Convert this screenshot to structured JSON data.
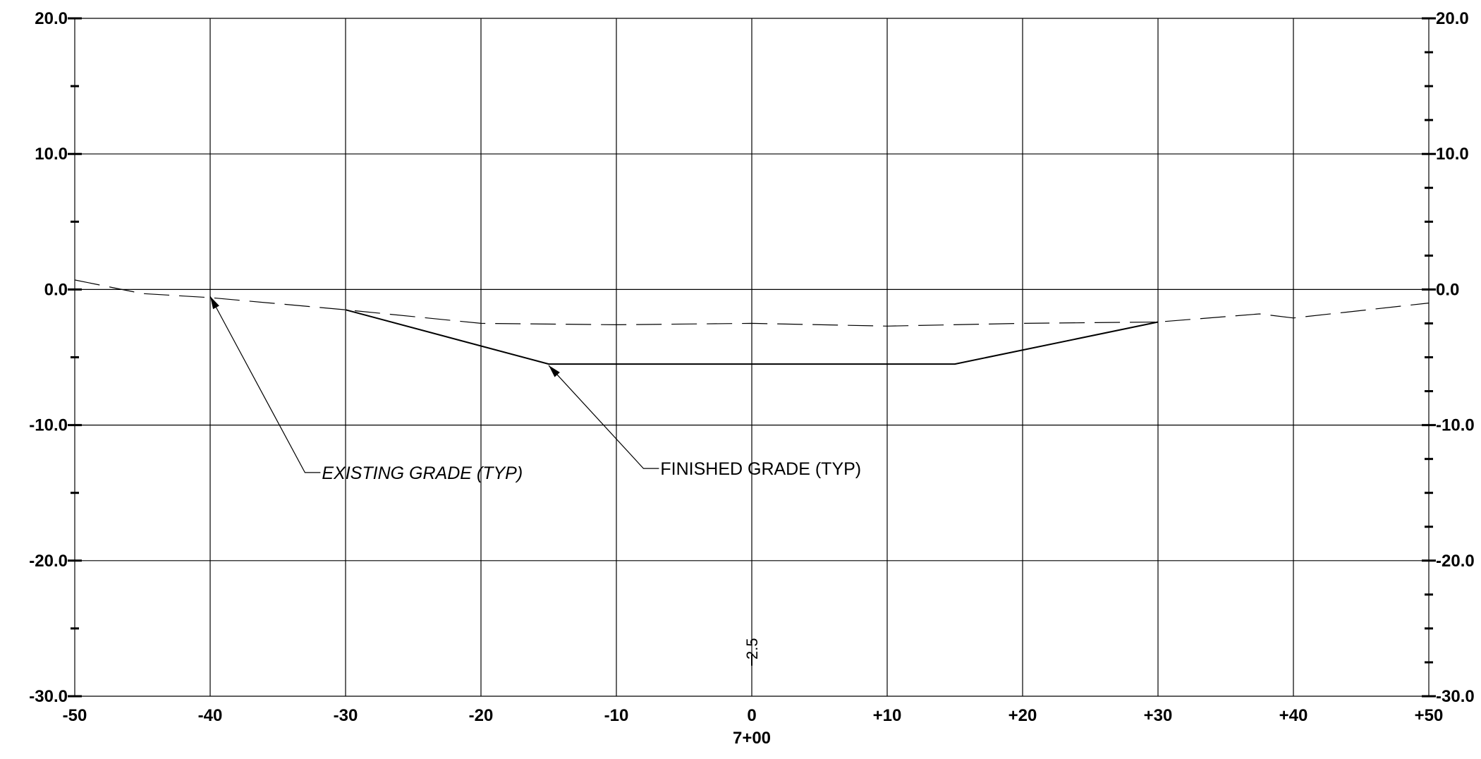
{
  "chart_data": {
    "type": "line",
    "title": "",
    "xlabel": "",
    "ylabel": "",
    "xlim": [
      -50,
      50
    ],
    "ylim": [
      -30,
      20
    ],
    "grid": true,
    "x_ticks": [
      -50,
      -40,
      -30,
      -20,
      -10,
      0,
      10,
      20,
      30,
      40,
      50
    ],
    "x_tick_labels": [
      "-50",
      "-40",
      "-30",
      "-20",
      "-10",
      "0",
      "+10",
      "+20",
      "+30",
      "+40",
      "+50"
    ],
    "y_ticks": [
      20,
      10,
      0,
      -10,
      -20,
      -30
    ],
    "y_tick_labels": [
      "20.0",
      "10.0",
      "0.0",
      "-10.0",
      "-20.0",
      "-30.0"
    ],
    "left_minor_ticks": [
      15,
      5,
      -5,
      -15,
      -25
    ],
    "right_minor_ticks": [
      17.5,
      15,
      12.5,
      7.5,
      5,
      2.5,
      -2.5,
      -5,
      -7.5,
      -12.5,
      -15,
      -17.5,
      -22.5,
      -25,
      -27.5
    ],
    "station": "7+00",
    "series": [
      {
        "style": "dashed",
        "x": [
          -50,
          -45,
          -40,
          -30,
          -20,
          -10,
          0,
          10,
          20,
          30,
          37.5,
          40,
          50
        ],
        "y": [
          0.7,
          -0.3,
          -0.6,
          -1.5,
          -2.5,
          -2.6,
          -2.5,
          -2.7,
          -2.5,
          -2.4,
          -1.8,
          -2.1,
          -1.0
        ]
      },
      {
        "style": "solid",
        "x": [
          -30,
          -15,
          15,
          30
        ],
        "y": [
          -1.5,
          -5.5,
          -5.5,
          -2.4
        ]
      }
    ],
    "annotations": [
      {
        "text": "EXISTING GRADE (TYP)",
        "italic": true,
        "target": [
          -40,
          -0.5
        ],
        "elbow": [
          -33,
          -13.5
        ]
      },
      {
        "text": "FINISHED GRADE (TYP)",
        "italic": false,
        "target": [
          -15,
          -5.6
        ],
        "elbow": [
          -8,
          -13.2
        ]
      }
    ],
    "notes": [
      {
        "text": "2.5",
        "x": 0,
        "y": -26.5
      }
    ]
  }
}
